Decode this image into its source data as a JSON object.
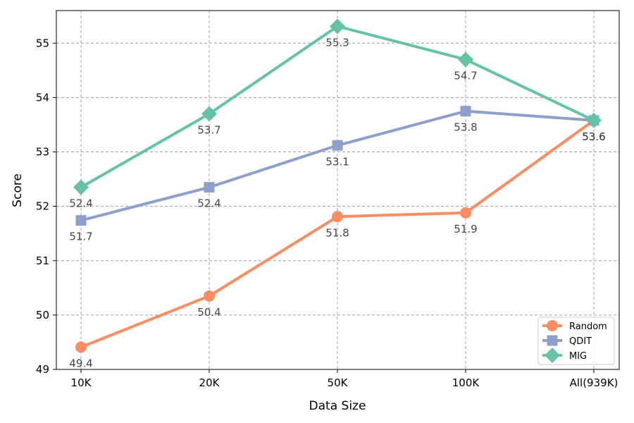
{
  "chart_data": {
    "type": "line",
    "xlabel": "Data Size",
    "ylabel": "Score",
    "categories": [
      "10K",
      "20K",
      "50K",
      "100K",
      "All(939K)"
    ],
    "ylim": [
      49,
      55.6
    ],
    "yticks": [
      "49",
      "50",
      "51",
      "52",
      "53",
      "54",
      "55"
    ],
    "grid": true,
    "legend_position": "lower-right",
    "series": [
      {
        "name": "Random",
        "color": "#fc8d62",
        "marker": "circle",
        "values": [
          49.41,
          50.35,
          51.81,
          51.88,
          53.58
        ],
        "labels": [
          "49.4",
          "50.4",
          "51.8",
          "51.9",
          "53.6"
        ]
      },
      {
        "name": "QDIT",
        "color": "#8da0cb",
        "marker": "square",
        "values": [
          51.74,
          52.35,
          53.12,
          53.75,
          53.58
        ],
        "labels": [
          "51.7",
          "52.4",
          "53.1",
          "53.8",
          "53.6"
        ]
      },
      {
        "name": "MIG",
        "color": "#66c2a5",
        "marker": "diamond",
        "values": [
          52.35,
          53.7,
          55.31,
          54.7,
          53.58
        ],
        "labels": [
          "52.4",
          "53.7",
          "55.3",
          "54.7",
          "53.6"
        ]
      }
    ]
  }
}
